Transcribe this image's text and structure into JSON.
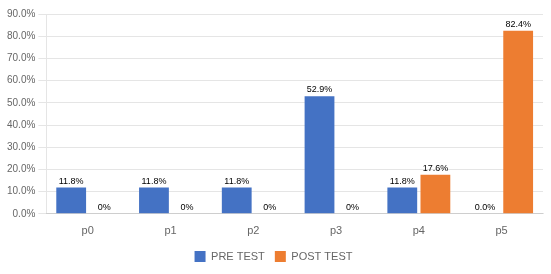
{
  "chart_data": {
    "type": "bar",
    "categories": [
      "p0",
      "p1",
      "p2",
      "p3",
      "p4",
      "p5"
    ],
    "series": [
      {
        "name": "PRE TEST",
        "color": "#4472C4",
        "values": [
          11.8,
          11.8,
          11.8,
          52.9,
          11.8,
          0.0
        ],
        "value_labels": [
          "11.8%",
          "11.8%",
          "11.8%",
          "52.9%",
          "11.8%",
          "0.0%"
        ]
      },
      {
        "name": "POST TEST",
        "color": "#ED7D31",
        "values": [
          0.0,
          0.0,
          0.0,
          0.0,
          17.6,
          82.4
        ],
        "value_labels": [
          "0%",
          "0%",
          "0%",
          "0%",
          "17.6%",
          "82.4%"
        ]
      }
    ],
    "ylim": [
      0,
      90
    ],
    "yticks": [
      {
        "value": 0,
        "label": "0.0%"
      },
      {
        "value": 10,
        "label": "10.0%"
      },
      {
        "value": 20,
        "label": "20.0%"
      },
      {
        "value": 30,
        "label": "30.0%"
      },
      {
        "value": 40,
        "label": "40.0%"
      },
      {
        "value": 50,
        "label": "50.0%"
      },
      {
        "value": 60,
        "label": "60.0%"
      },
      {
        "value": 70,
        "label": "70.0%"
      },
      {
        "value": 80,
        "label": "80.0%"
      },
      {
        "value": 90,
        "label": "90.0%"
      }
    ],
    "grid": true,
    "legend": "bottom",
    "data_labels": true
  }
}
